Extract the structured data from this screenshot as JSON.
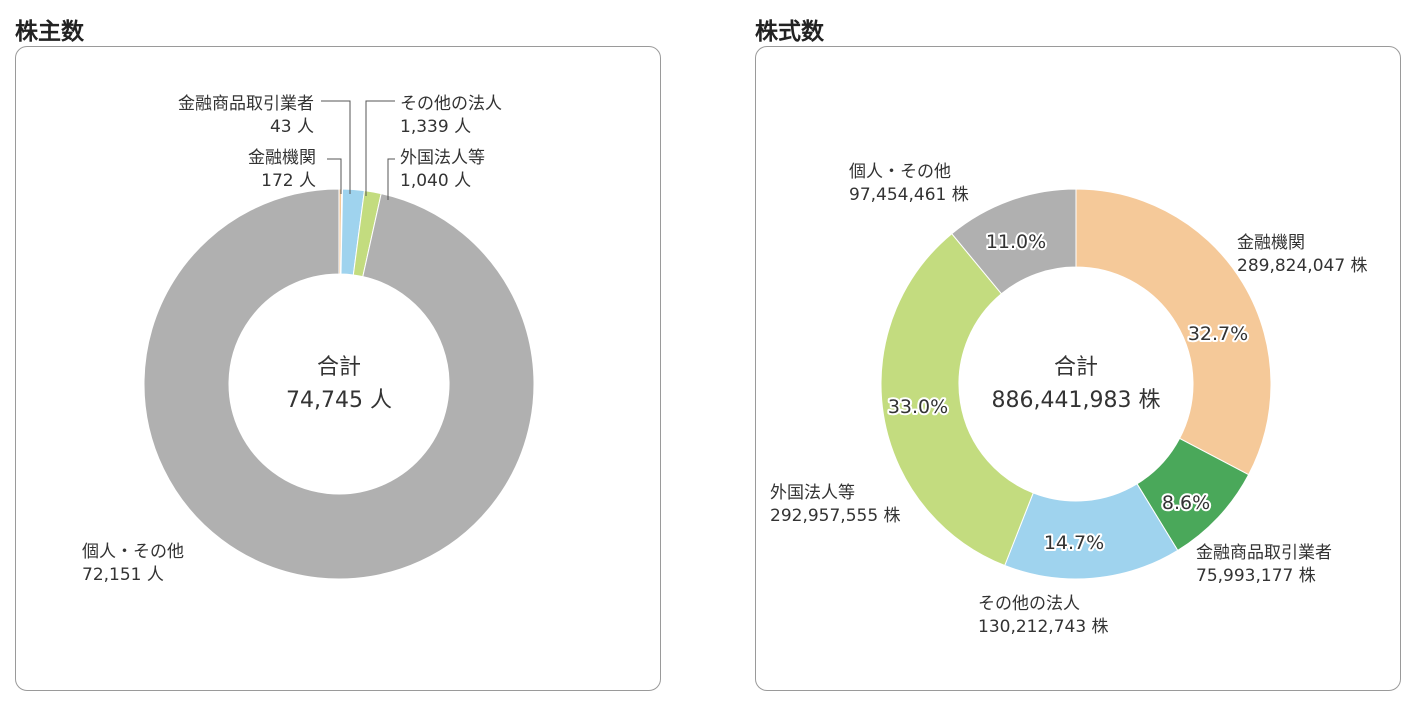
{
  "chart_data": [
    {
      "type": "pie",
      "title": "株主数",
      "donut": true,
      "center": {
        "label": "合計",
        "value": "74,745 人"
      },
      "unit": "人",
      "slices": [
        {
          "name": "金融機関",
          "value": 172,
          "value_label": "172 人",
          "color": "#f5c999"
        },
        {
          "name": "金融商品取引業者",
          "value": 43,
          "value_label": "43 人",
          "color": "#3a9a4a"
        },
        {
          "name": "その他の法人",
          "value": 1339,
          "value_label": "1,339 人",
          "color": "#9fd3ee"
        },
        {
          "name": "外国法人等",
          "value": 1040,
          "value_label": "1,040 人",
          "color": "#c3dc7f"
        },
        {
          "name": "個人・その他",
          "value": 72151,
          "value_label": "72,151 人",
          "color": "#b0b0b0"
        }
      ]
    },
    {
      "type": "pie",
      "title": "株式数",
      "donut": true,
      "center": {
        "label": "合計",
        "value": "886,441,983 株"
      },
      "unit": "株",
      "slices": [
        {
          "name": "金融機関",
          "value": 289824047,
          "value_label": "289,824,047 株",
          "percent": "32.7%",
          "color": "#f5c999"
        },
        {
          "name": "金融商品取引業者",
          "value": 75993177,
          "value_label": "75,993,177 株",
          "percent": "8.6%",
          "color": "#4aa85a"
        },
        {
          "name": "その他の法人",
          "value": 130212743,
          "value_label": "130,212,743 株",
          "percent": "14.7%",
          "color": "#9fd3ee"
        },
        {
          "name": "外国法人等",
          "value": 292957555,
          "value_label": "292,957,555 株",
          "percent": "33.0%",
          "color": "#c3dc7f"
        },
        {
          "name": "個人・その他",
          "value": 97454461,
          "value_label": "97,454,461 株",
          "percent": "11.0%",
          "color": "#b0b0b0"
        }
      ]
    }
  ]
}
